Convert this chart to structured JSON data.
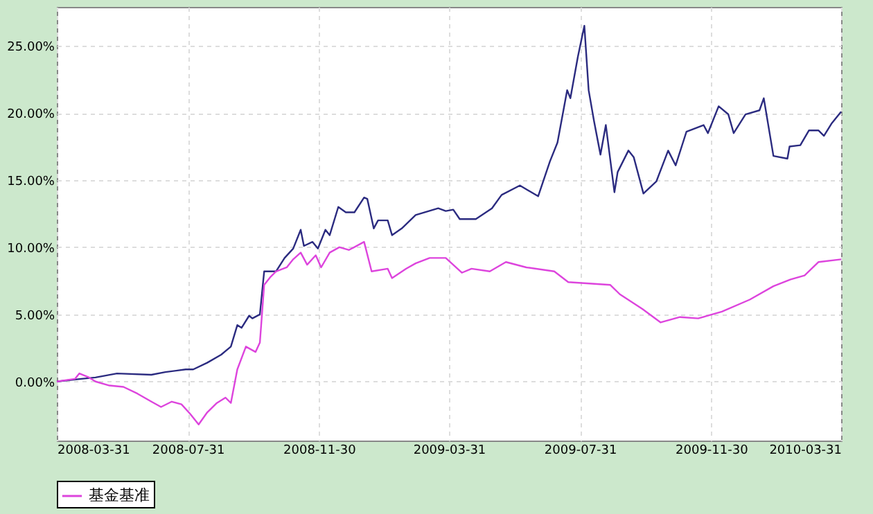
{
  "chart_data": {
    "type": "line",
    "xlim": [
      "2008-03-31",
      "2010-03-31"
    ],
    "xticks": [
      "2008-03-31",
      "2008-07-31",
      "2008-11-30",
      "2009-03-31",
      "2009-07-31",
      "2009-11-30",
      "2010-03-31"
    ],
    "ylim": [
      -4.4,
      27.9
    ],
    "yticks": [
      {
        "value": 0,
        "label": "0.00%"
      },
      {
        "value": 5,
        "label": "5.00%"
      },
      {
        "value": 10,
        "label": "10.00%"
      },
      {
        "value": 15,
        "label": "15.00%"
      },
      {
        "value": 20,
        "label": "20.00%"
      },
      {
        "value": 25,
        "label": "25.00%"
      }
    ],
    "grid": true,
    "legend": "bottom",
    "marker": "none",
    "line_style": "solid",
    "series": [
      {
        "color": "#2b2b80",
        "x": [
          "2008-03-31",
          "2008-04-23",
          "2008-05-06",
          "2008-05-26",
          "2008-06-27",
          "2008-07-10",
          "2008-07-29",
          "2008-08-05",
          "2008-08-18",
          "2008-08-31",
          "2008-09-09",
          "2008-09-15",
          "2008-09-19",
          "2008-09-26",
          "2008-09-29",
          "2008-10-06",
          "2008-10-10",
          "2008-10-21",
          "2008-10-29",
          "2008-11-06",
          "2008-11-13",
          "2008-11-16",
          "2008-11-24",
          "2008-11-29",
          "2008-12-06",
          "2008-12-10",
          "2008-12-18",
          "2008-12-25",
          "2009-01-02",
          "2009-01-11",
          "2009-01-14",
          "2009-01-20",
          "2009-01-24",
          "2009-02-02",
          "2009-02-06",
          "2009-02-15",
          "2009-02-28",
          "2009-03-21",
          "2009-03-28",
          "2009-04-04",
          "2009-04-10",
          "2009-04-25",
          "2009-05-10",
          "2009-05-19",
          "2009-06-05",
          "2009-06-22",
          "2009-07-03",
          "2009-07-10",
          "2009-07-19",
          "2009-07-22",
          "2009-07-29",
          "2009-08-04",
          "2009-08-08",
          "2009-08-13",
          "2009-08-19",
          "2009-08-24",
          "2009-09-01",
          "2009-09-04",
          "2009-09-14",
          "2009-09-19",
          "2009-09-28",
          "2009-10-10",
          "2009-10-21",
          "2009-10-28",
          "2009-11-07",
          "2009-11-23",
          "2009-11-27",
          "2009-12-07",
          "2009-12-16",
          "2009-12-21",
          "2010-01-01",
          "2010-01-14",
          "2010-01-18",
          "2010-01-27",
          "2010-02-09",
          "2010-02-11",
          "2010-02-21",
          "2010-03-01",
          "2010-03-10",
          "2010-03-15",
          "2010-03-22",
          "2010-03-31"
        ],
        "values": [
          0,
          0.2,
          0.3,
          0.6,
          0.5,
          0.7,
          0.9,
          0.9,
          1.4,
          2.0,
          2.6,
          4.2,
          4.0,
          4.9,
          4.7,
          5.0,
          8.2,
          8.2,
          9.2,
          9.9,
          11.3,
          10.1,
          10.4,
          9.9,
          11.3,
          10.9,
          13.0,
          12.6,
          12.6,
          13.7,
          13.6,
          11.4,
          12.0,
          12.0,
          10.9,
          11.4,
          12.4,
          12.9,
          12.7,
          12.8,
          12.1,
          12.1,
          12.9,
          13.9,
          14.6,
          13.8,
          16.4,
          17.8,
          21.7,
          21.1,
          24.2,
          26.5,
          21.7,
          19.4,
          16.9,
          19.1,
          14.1,
          15.6,
          17.2,
          16.7,
          14.0,
          14.9,
          17.2,
          16.1,
          18.6,
          19.1,
          18.5,
          20.5,
          19.9,
          18.5,
          19.9,
          20.2,
          21.1,
          16.8,
          16.6,
          17.5,
          17.6,
          18.7,
          18.7,
          18.3,
          19.2,
          20.1
        ]
      },
      {
        "name": "基金基准",
        "color": "#dd44dd",
        "x": [
          "2008-03-31",
          "2008-04-17",
          "2008-04-21",
          "2008-04-30",
          "2008-05-06",
          "2008-05-19",
          "2008-06-01",
          "2008-06-14",
          "2008-06-27",
          "2008-07-06",
          "2008-07-16",
          "2008-07-25",
          "2008-08-02",
          "2008-08-10",
          "2008-08-18",
          "2008-08-27",
          "2008-09-04",
          "2008-09-09",
          "2008-09-15",
          "2008-09-23",
          "2008-10-02",
          "2008-10-06",
          "2008-10-10",
          "2008-10-16",
          "2008-10-21",
          "2008-10-31",
          "2008-11-06",
          "2008-11-13",
          "2008-11-19",
          "2008-11-27",
          "2008-12-02",
          "2008-12-10",
          "2008-12-19",
          "2008-12-28",
          "2009-01-11",
          "2009-01-18",
          "2009-02-02",
          "2009-02-06",
          "2009-02-19",
          "2009-02-28",
          "2009-03-13",
          "2009-03-28",
          "2009-04-12",
          "2009-04-21",
          "2009-05-08",
          "2009-05-23",
          "2009-06-11",
          "2009-07-07",
          "2009-07-20",
          "2009-08-28",
          "2009-09-06",
          "2009-09-27",
          "2009-10-14",
          "2009-11-01",
          "2009-11-18",
          "2009-12-10",
          "2010-01-05",
          "2010-01-27",
          "2010-02-12",
          "2010-02-25",
          "2010-03-10",
          "2010-03-31"
        ],
        "values": [
          0,
          0.2,
          0.6,
          0.3,
          0,
          -0.3,
          -0.4,
          -0.9,
          -1.5,
          -1.9,
          -1.5,
          -1.7,
          -2.4,
          -3.2,
          -2.3,
          -1.6,
          -1.2,
          -1.6,
          0.9,
          2.6,
          2.2,
          2.9,
          7.2,
          7.8,
          8.2,
          8.5,
          9.1,
          9.6,
          8.7,
          9.4,
          8.5,
          9.6,
          10.0,
          9.8,
          10.4,
          8.2,
          8.4,
          7.7,
          8.4,
          8.8,
          9.2,
          9.2,
          8.1,
          8.4,
          8.2,
          8.9,
          8.5,
          8.2,
          7.4,
          7.2,
          6.5,
          5.4,
          4.4,
          4.8,
          4.7,
          5.2,
          6.1,
          7.1,
          7.6,
          7.9,
          8.9,
          9.1
        ]
      }
    ]
  }
}
